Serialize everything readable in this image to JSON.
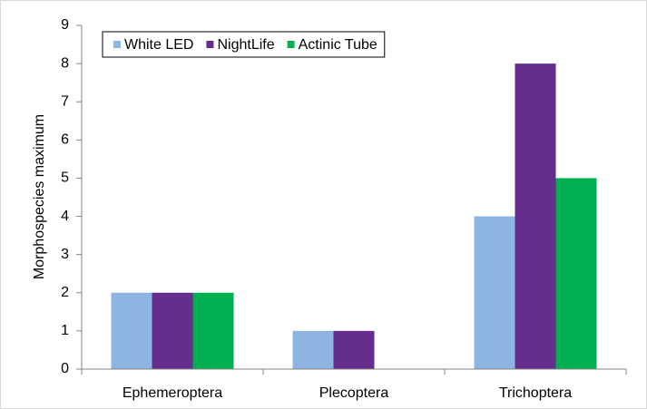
{
  "chart_data": {
    "type": "bar",
    "categories": [
      "Ephemeroptera",
      "Plecoptera",
      "Trichoptera"
    ],
    "series": [
      {
        "name": "White LED",
        "color": "#8db4e2",
        "values": [
          2,
          1,
          4
        ]
      },
      {
        "name": "NightLife",
        "color": "#652d8e",
        "values": [
          2,
          1,
          8
        ]
      },
      {
        "name": "Actinic Tube",
        "color": "#00b050",
        "values": [
          2,
          0,
          5
        ]
      }
    ],
    "ylabel": "Morphospecies maximum",
    "ylim": [
      0,
      9
    ],
    "yticks": [
      0,
      1,
      2,
      3,
      4,
      5,
      6,
      7,
      8,
      9
    ],
    "legend": "top-left"
  }
}
